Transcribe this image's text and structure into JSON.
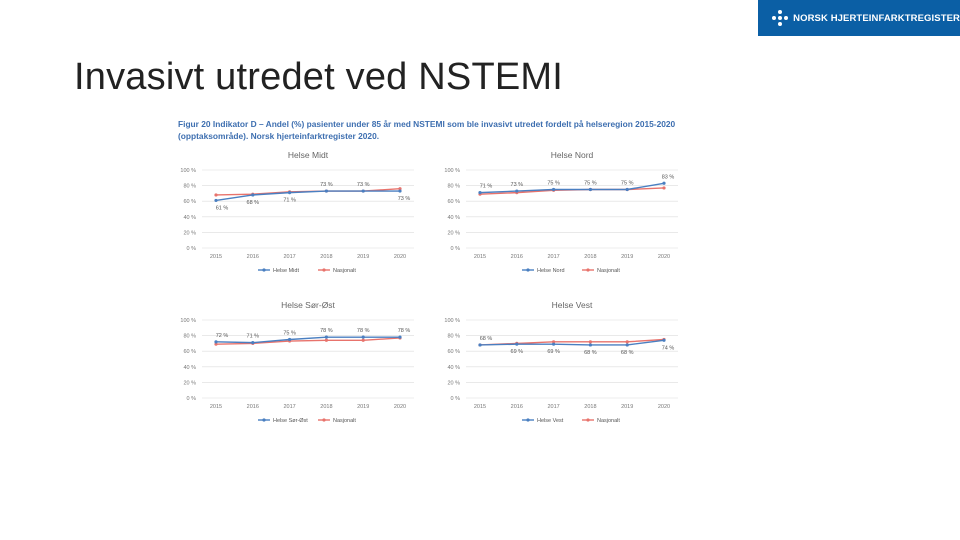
{
  "logo": {
    "text": "NORSK HJERTEINFARKTREGISTER"
  },
  "slide": {
    "title": "Invasivt utredet ved NSTEMI"
  },
  "figure": {
    "caption": "Figur 20 Indikator D – Andel (%) pasienter under 85 år med NSTEMI som ble invasivt utredet fordelt på helseregion 2015-2020 (opptaksområde). Norsk hjerteinfarktregister 2020."
  },
  "chart_data": [
    {
      "type": "line",
      "title": "Helse Midt",
      "categories": [
        "2015",
        "2016",
        "2017",
        "2018",
        "2019",
        "2020"
      ],
      "y_ticks": [
        "0 %",
        "20 %",
        "40 %",
        "60 %",
        "80 %",
        "100 %"
      ],
      "ylim": [
        0,
        100
      ],
      "series": [
        {
          "name": "Helse Midt",
          "color": "#4a7fc1",
          "values": [
            61,
            68,
            71,
            73,
            73,
            73
          ],
          "labels": [
            "61 %",
            "68 %",
            "71 %",
            "73 %",
            "73 %",
            "73 %"
          ]
        },
        {
          "name": "Nasjonalt",
          "color": "#e8736c",
          "values": [
            68,
            69,
            72,
            73,
            73,
            76
          ]
        }
      ]
    },
    {
      "type": "line",
      "title": "Helse Nord",
      "categories": [
        "2015",
        "2016",
        "2017",
        "2018",
        "2019",
        "2020"
      ],
      "y_ticks": [
        "0 %",
        "20 %",
        "40 %",
        "60 %",
        "80 %",
        "100 %"
      ],
      "ylim": [
        0,
        100
      ],
      "series": [
        {
          "name": "Helse Nord",
          "color": "#4a7fc1",
          "values": [
            71,
            73,
            75,
            75,
            75,
            83
          ],
          "labels": [
            "71 %",
            "73 %",
            "75 %",
            "75 %",
            "75 %",
            "83 %"
          ]
        },
        {
          "name": "Nasjonalt",
          "color": "#e8736c",
          "values": [
            69,
            71,
            74,
            75,
            75,
            77
          ]
        }
      ]
    },
    {
      "type": "line",
      "title": "Helse Sør-Øst",
      "categories": [
        "2015",
        "2016",
        "2017",
        "2018",
        "2019",
        "2020"
      ],
      "y_ticks": [
        "0 %",
        "20 %",
        "40 %",
        "60 %",
        "80 %",
        "100 %"
      ],
      "ylim": [
        0,
        100
      ],
      "series": [
        {
          "name": "Helse Sør-Øst",
          "color": "#4a7fc1",
          "values": [
            72,
            71,
            75,
            78,
            78,
            78
          ],
          "labels": [
            "72 %",
            "71 %",
            "75 %",
            "78 %",
            "78 %",
            "78 %"
          ]
        },
        {
          "name": "Nasjonalt",
          "color": "#e8736c",
          "values": [
            69,
            70,
            73,
            74,
            74,
            77
          ]
        }
      ]
    },
    {
      "type": "line",
      "title": "Helse Vest",
      "categories": [
        "2015",
        "2016",
        "2017",
        "2018",
        "2019",
        "2020"
      ],
      "y_ticks": [
        "0 %",
        "20 %",
        "40 %",
        "60 %",
        "80 %",
        "100 %"
      ],
      "ylim": [
        0,
        100
      ],
      "series": [
        {
          "name": "Helse Vest",
          "color": "#4a7fc1",
          "values": [
            68,
            69,
            69,
            68,
            68,
            74
          ],
          "labels": [
            "68 %",
            "69 %",
            "69 %",
            "68 %",
            "68 %",
            "74 %"
          ]
        },
        {
          "name": "Nasjonalt",
          "color": "#e8736c",
          "values": [
            68,
            70,
            72,
            72,
            72,
            75
          ]
        }
      ]
    }
  ]
}
